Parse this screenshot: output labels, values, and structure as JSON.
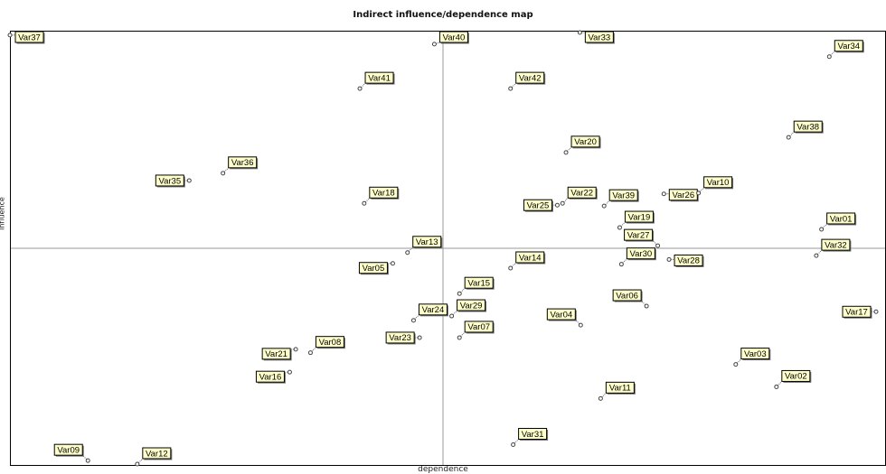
{
  "chart_data": {
    "type": "scatter",
    "title": "Indirect influence/dependence map",
    "xlabel": "dependence",
    "ylabel": "influence",
    "grid": false,
    "xlim": [
      0,
      100
    ],
    "ylim": [
      0,
      100
    ],
    "guide_x": 50,
    "guide_y": 50,
    "points": [
      {
        "name": "Var37",
        "x": 0.0,
        "y": 99.4,
        "label": "top-right"
      },
      {
        "name": "Var40",
        "x": 49.0,
        "y": 97.3,
        "label": "top-right"
      },
      {
        "name": "Var33",
        "x": 65.8,
        "y": 100.0,
        "label": "bottom-right"
      },
      {
        "name": "Var34",
        "x": 94.6,
        "y": 94.4,
        "label": "top-right"
      },
      {
        "name": "Var41",
        "x": 40.4,
        "y": 87.0,
        "label": "top-right"
      },
      {
        "name": "Var42",
        "x": 57.8,
        "y": 87.0,
        "label": "top-right"
      },
      {
        "name": "Var38",
        "x": 89.9,
        "y": 75.7,
        "label": "top-right"
      },
      {
        "name": "Var20",
        "x": 64.2,
        "y": 72.2,
        "label": "top-right"
      },
      {
        "name": "Var36",
        "x": 24.6,
        "y": 67.4,
        "label": "top-right"
      },
      {
        "name": "Var35",
        "x": 20.7,
        "y": 65.7,
        "label": "left"
      },
      {
        "name": "Var18",
        "x": 40.9,
        "y": 60.4,
        "label": "top-right"
      },
      {
        "name": "Var25",
        "x": 63.2,
        "y": 60.0,
        "label": "left"
      },
      {
        "name": "Var22",
        "x": 63.8,
        "y": 60.4,
        "label": "top-right"
      },
      {
        "name": "Var39",
        "x": 68.6,
        "y": 59.8,
        "label": "top-right"
      },
      {
        "name": "Var26",
        "x": 75.5,
        "y": 62.6,
        "label": "bottom-right"
      },
      {
        "name": "Var10",
        "x": 79.5,
        "y": 62.8,
        "label": "top-right"
      },
      {
        "name": "Var19",
        "x": 70.4,
        "y": 54.8,
        "label": "top-right"
      },
      {
        "name": "Var01",
        "x": 93.7,
        "y": 54.4,
        "label": "top-right"
      },
      {
        "name": "Var13",
        "x": 45.9,
        "y": 49.0,
        "label": "top-right"
      },
      {
        "name": "Var27",
        "x": 74.8,
        "y": 50.6,
        "label": "top-left"
      },
      {
        "name": "Var32",
        "x": 93.1,
        "y": 48.3,
        "label": "top-right"
      },
      {
        "name": "Var05",
        "x": 44.2,
        "y": 46.5,
        "label": "bottom-left"
      },
      {
        "name": "Var14",
        "x": 57.8,
        "y": 45.4,
        "label": "top-right"
      },
      {
        "name": "Var30",
        "x": 70.6,
        "y": 46.3,
        "label": "top-right"
      },
      {
        "name": "Var28",
        "x": 76.1,
        "y": 47.4,
        "label": "bottom-right"
      },
      {
        "name": "Var15",
        "x": 51.9,
        "y": 39.5,
        "label": "top-right"
      },
      {
        "name": "Var06",
        "x": 73.5,
        "y": 36.6,
        "label": "top-left"
      },
      {
        "name": "Var24",
        "x": 46.6,
        "y": 33.3,
        "label": "top-right"
      },
      {
        "name": "Var29",
        "x": 51.0,
        "y": 34.3,
        "label": "top-right"
      },
      {
        "name": "Var17",
        "x": 100.0,
        "y": 35.3,
        "label": "left"
      },
      {
        "name": "Var04",
        "x": 65.9,
        "y": 32.2,
        "label": "top-left"
      },
      {
        "name": "Var07",
        "x": 51.9,
        "y": 29.3,
        "label": "top-right"
      },
      {
        "name": "Var23",
        "x": 47.3,
        "y": 29.3,
        "label": "left"
      },
      {
        "name": "Var08",
        "x": 34.7,
        "y": 25.8,
        "label": "top-right"
      },
      {
        "name": "Var21",
        "x": 33.0,
        "y": 26.6,
        "label": "bottom-left"
      },
      {
        "name": "Var16",
        "x": 32.3,
        "y": 21.3,
        "label": "bottom-left"
      },
      {
        "name": "Var03",
        "x": 83.8,
        "y": 23.1,
        "label": "top-right"
      },
      {
        "name": "Var02",
        "x": 88.5,
        "y": 17.9,
        "label": "top-right"
      },
      {
        "name": "Var11",
        "x": 68.2,
        "y": 15.2,
        "label": "top-right"
      },
      {
        "name": "Var31",
        "x": 58.1,
        "y": 4.5,
        "label": "top-right"
      },
      {
        "name": "Var09",
        "x": 9.0,
        "y": 0.8,
        "label": "top-left"
      },
      {
        "name": "Var12",
        "x": 14.7,
        "y": 0.0,
        "label": "top-right"
      }
    ]
  }
}
